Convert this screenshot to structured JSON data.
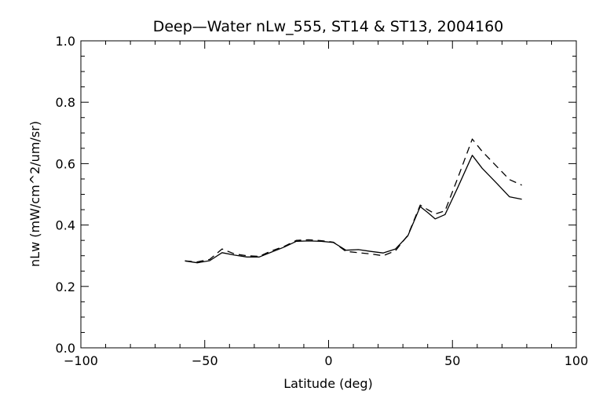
{
  "chart_data": {
    "type": "line",
    "title": "Deep—Water nLw_555, ST14 & ST13, 2004160",
    "xlabel": "Latitude (deg)",
    "ylabel": "nLw (mW/cm^2/um/sr)",
    "xlim": [
      -100,
      100
    ],
    "ylim": [
      0.0,
      1.0
    ],
    "x_ticks": [
      -100,
      -50,
      0,
      50,
      100
    ],
    "x_tick_labels": [
      "−100",
      "−50",
      "0",
      "50",
      "100"
    ],
    "y_ticks": [
      0.0,
      0.2,
      0.4,
      0.6,
      0.8,
      1.0
    ],
    "y_tick_labels": [
      "0.0",
      "0.2",
      "0.4",
      "0.6",
      "0.8",
      "1.0"
    ],
    "grid": false,
    "series": [
      {
        "style": "solid",
        "color": "#000000",
        "x": [
          -58,
          -53,
          -48,
          -43,
          -38,
          -33,
          -28,
          -23,
          -18,
          -13,
          -8,
          -3,
          2,
          7,
          12,
          17,
          22,
          27,
          32,
          37,
          40,
          43,
          47,
          52,
          58,
          62,
          68,
          73,
          78
        ],
        "y": [
          0.283,
          0.277,
          0.284,
          0.31,
          0.302,
          0.296,
          0.296,
          0.312,
          0.328,
          0.347,
          0.348,
          0.347,
          0.343,
          0.318,
          0.32,
          0.314,
          0.309,
          0.322,
          0.365,
          0.46,
          0.441,
          0.42,
          0.434,
          0.52,
          0.627,
          0.585,
          0.535,
          0.492,
          0.484
        ]
      },
      {
        "style": "dashed",
        "color": "#000000",
        "x": [
          -58,
          -53,
          -48,
          -43,
          -38,
          -33,
          -28,
          -23,
          -18,
          -13,
          -8,
          -3,
          2,
          7,
          12,
          17,
          22,
          27,
          32,
          37,
          40,
          43,
          47,
          52,
          58,
          62,
          68,
          73,
          78
        ],
        "y": [
          0.283,
          0.28,
          0.288,
          0.322,
          0.306,
          0.3,
          0.298,
          0.316,
          0.33,
          0.35,
          0.352,
          0.349,
          0.344,
          0.314,
          0.31,
          0.306,
          0.3,
          0.316,
          0.367,
          0.465,
          0.45,
          0.436,
          0.446,
          0.55,
          0.68,
          0.64,
          0.59,
          0.548,
          0.53
        ]
      }
    ]
  }
}
